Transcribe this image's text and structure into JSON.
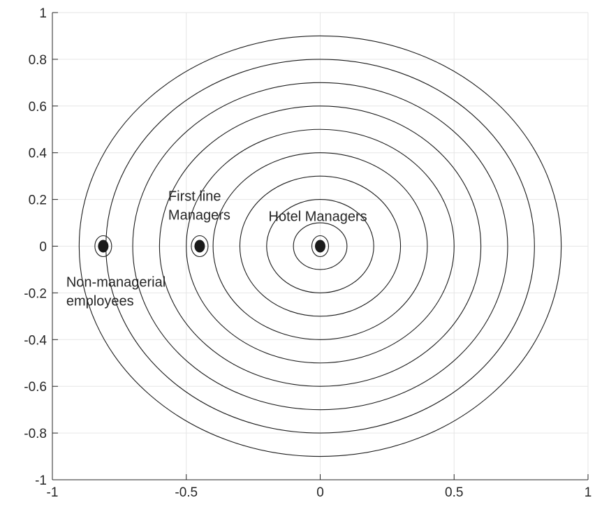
{
  "chart_data": {
    "type": "scatter",
    "title": "",
    "xlabel": "",
    "ylabel": "",
    "xlim": [
      -1,
      1
    ],
    "ylim": [
      -1,
      1
    ],
    "grid": true,
    "x_ticks": [
      -1,
      -0.5,
      0,
      0.5,
      1
    ],
    "x_tick_labels": [
      "-1",
      "-0.5",
      "0",
      "0.5",
      "1"
    ],
    "y_ticks": [
      -1,
      -0.8,
      -0.6,
      -0.4,
      -0.2,
      0,
      0.2,
      0.4,
      0.6,
      0.8,
      1
    ],
    "y_tick_labels": [
      "-1",
      "-0.8",
      "-0.6",
      "-0.4",
      "-0.2",
      "0",
      "0.2",
      "0.4",
      "0.6",
      "0.8",
      "1"
    ],
    "circles": {
      "center": [
        0,
        0
      ],
      "radii": [
        0.1,
        0.2,
        0.3,
        0.4,
        0.5,
        0.6,
        0.7,
        0.8,
        0.9
      ]
    },
    "points": [
      {
        "x": -0.81,
        "y": 0,
        "label_lines": [
          "Non-managerial",
          "employees"
        ]
      },
      {
        "x": -0.45,
        "y": 0,
        "label_lines": [
          "First line",
          "Managers"
        ]
      },
      {
        "x": 0,
        "y": 0,
        "label_lines": [
          "Hotel Managers"
        ]
      }
    ],
    "colors": {
      "line": "#1a1a1a",
      "grid": "#e6e6e6",
      "text": "#262626"
    }
  }
}
